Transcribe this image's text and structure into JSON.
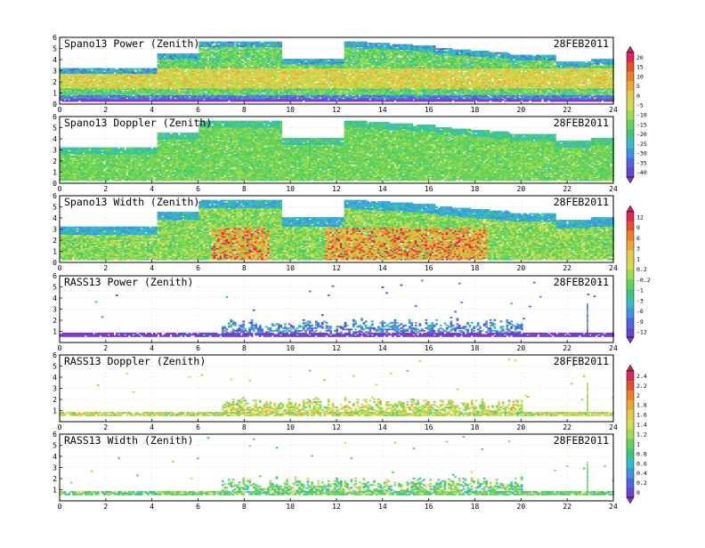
{
  "chart_data": [
    {
      "type": "heatmap",
      "title": "Spano13 Power (Zenith)",
      "date": "28FEB2011",
      "profile": "spano",
      "metric": "power",
      "xlim": [
        0,
        24
      ],
      "ylim": [
        0,
        6
      ],
      "x_ticks": [
        0,
        2,
        4,
        6,
        8,
        10,
        12,
        14,
        16,
        18,
        20,
        22,
        24
      ],
      "y_ticks": [
        0,
        1,
        2,
        3,
        4,
        5,
        6
      ],
      "grid": true,
      "colorbar": {
        "ticks": [
          "20",
          "15",
          "10",
          "5",
          "0",
          "-5",
          "-10",
          "-15",
          "-20",
          "-25",
          "-30",
          "-35",
          "-40"
        ],
        "colors": [
          "#c81e6e",
          "#e0245a",
          "#e6502a",
          "#ee7d23",
          "#f0a530",
          "#e6c84a",
          "#d2dc50",
          "#9edc50",
          "#64d25a",
          "#3cc87a",
          "#32bec8",
          "#3c96e6",
          "#5064e6",
          "#6446d2",
          "#8c32c8"
        ]
      }
    },
    {
      "type": "heatmap",
      "title": "Spano13 Doppler (Zenith)",
      "date": "28FEB2011",
      "profile": "spano",
      "metric": "doppler",
      "xlim": [
        0,
        24
      ],
      "ylim": [
        0,
        6
      ],
      "x_ticks": [
        0,
        2,
        4,
        6,
        8,
        10,
        12,
        14,
        16,
        18,
        20,
        22,
        24
      ],
      "y_ticks": [
        0,
        1,
        2,
        3,
        4,
        5,
        6
      ],
      "grid": true
    },
    {
      "type": "heatmap",
      "title": "Spano13 Width (Zenith)",
      "date": "28FEB2011",
      "profile": "spano",
      "metric": "width",
      "xlim": [
        0,
        24
      ],
      "ylim": [
        0,
        6
      ],
      "x_ticks": [
        0,
        2,
        4,
        6,
        8,
        10,
        12,
        14,
        16,
        18,
        20,
        22,
        24
      ],
      "y_ticks": [
        0,
        1,
        2,
        3,
        4,
        5,
        6
      ],
      "grid": true,
      "colorbar": {
        "ticks": [
          "12",
          "9",
          "6",
          "3",
          "1",
          "0.2",
          "-0.2",
          "-1",
          "-3",
          "-6",
          "-9",
          "-12"
        ],
        "colors": [
          "#c81e6e",
          "#e0245a",
          "#e6502a",
          "#ee7d23",
          "#f0a530",
          "#e6c84a",
          "#d2dc50",
          "#9edc50",
          "#64d25a",
          "#3cc87a",
          "#32bec8",
          "#3c96e6",
          "#5064e6",
          "#6446d2",
          "#8c32c8"
        ]
      }
    },
    {
      "type": "heatmap",
      "title": "RASS13 Power (Zenith)",
      "date": "28FEB2011",
      "profile": "rass",
      "metric": "power",
      "xlim": [
        0,
        24
      ],
      "ylim": [
        0,
        6
      ],
      "x_ticks": [
        0,
        2,
        4,
        6,
        8,
        10,
        12,
        14,
        16,
        18,
        20,
        22,
        24
      ],
      "y_ticks": [
        1,
        2,
        3,
        4,
        5,
        6
      ],
      "grid": true
    },
    {
      "type": "heatmap",
      "title": "RASS13 Doppler (Zenith)",
      "date": "28FEB2011",
      "profile": "rass",
      "metric": "doppler",
      "xlim": [
        0,
        24
      ],
      "ylim": [
        0,
        6
      ],
      "x_ticks": [
        0,
        2,
        4,
        6,
        8,
        10,
        12,
        14,
        16,
        18,
        20,
        22,
        24
      ],
      "y_ticks": [
        1,
        2,
        3,
        4,
        5,
        6
      ],
      "grid": true,
      "colorbar": {
        "ticks": [
          "2.4",
          "2.2",
          "2",
          "1.8",
          "1.6",
          "1.4",
          "1.2",
          "1",
          "0.8",
          "0.6",
          "0.4",
          "0.2",
          "0"
        ],
        "colors": [
          "#c81e6e",
          "#e0245a",
          "#e6502a",
          "#ee7d23",
          "#f0a530",
          "#e6c84a",
          "#d2dc50",
          "#9edc50",
          "#64d25a",
          "#3cc87a",
          "#32bec8",
          "#3c96e6",
          "#5064e6",
          "#6446d2",
          "#8c32c8"
        ]
      }
    },
    {
      "type": "heatmap",
      "title": "RASS13 Width (Zenith)",
      "date": "28FEB2011",
      "profile": "rass",
      "metric": "width",
      "xlim": [
        0,
        24
      ],
      "ylim": [
        0,
        6
      ],
      "x_ticks": [
        0,
        2,
        4,
        6,
        8,
        10,
        12,
        14,
        16,
        18,
        20,
        22,
        24
      ],
      "y_ticks": [
        1,
        2,
        3,
        4,
        5,
        6
      ],
      "grid": true
    }
  ]
}
